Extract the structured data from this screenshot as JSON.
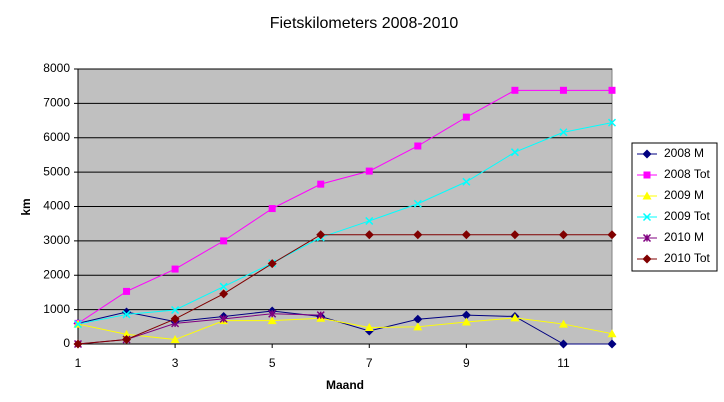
{
  "chart_data": {
    "type": "line",
    "title": "Fietskilometers 2008-2010",
    "x_label": "Maand",
    "y_label": "km",
    "x": [
      1,
      2,
      3,
      4,
      5,
      6,
      7,
      8,
      9,
      10,
      11,
      12
    ],
    "xlim": [
      1,
      12
    ],
    "xticks": [
      1,
      3,
      5,
      7,
      9,
      11
    ],
    "ylim": [
      0,
      8000
    ],
    "yticks": [
      0,
      1000,
      2000,
      3000,
      4000,
      5000,
      6000,
      7000,
      8000
    ],
    "grid": true,
    "legend": "right",
    "series": [
      {
        "name": "2008 M",
        "color": "#000080",
        "marker": "diamond",
        "values": [
          600,
          930,
          650,
          800,
          960,
          800,
          380,
          720,
          840,
          800,
          0,
          0
        ]
      },
      {
        "name": "2008 Tot",
        "color": "#ff00ff",
        "marker": "square",
        "values": [
          600,
          1530,
          2180,
          3000,
          3940,
          4650,
          5030,
          5760,
          6600,
          7380,
          7380,
          7380
        ]
      },
      {
        "name": "2009 M",
        "color": "#ffff00",
        "marker": "triangle",
        "values": [
          580,
          280,
          130,
          680,
          680,
          750,
          480,
          500,
          640,
          760,
          580,
          300
        ]
      },
      {
        "name": "2009 Tot",
        "color": "#00ffff",
        "marker": "x",
        "values": [
          580,
          860,
          990,
          1670,
          2350,
          3100,
          3580,
          4080,
          4720,
          5580,
          6160,
          6440
        ]
      },
      {
        "name": "2010 M",
        "color": "#800080",
        "marker": "star",
        "values": [
          0,
          130,
          600,
          730,
          880,
          840,
          null,
          null,
          null,
          null,
          null,
          null
        ]
      },
      {
        "name": "2010 Tot",
        "color": "#800000",
        "marker": "diamond",
        "values": [
          0,
          130,
          730,
          1460,
          2340,
          3180,
          3180,
          3180,
          3180,
          3180,
          3180,
          3180
        ]
      }
    ]
  }
}
